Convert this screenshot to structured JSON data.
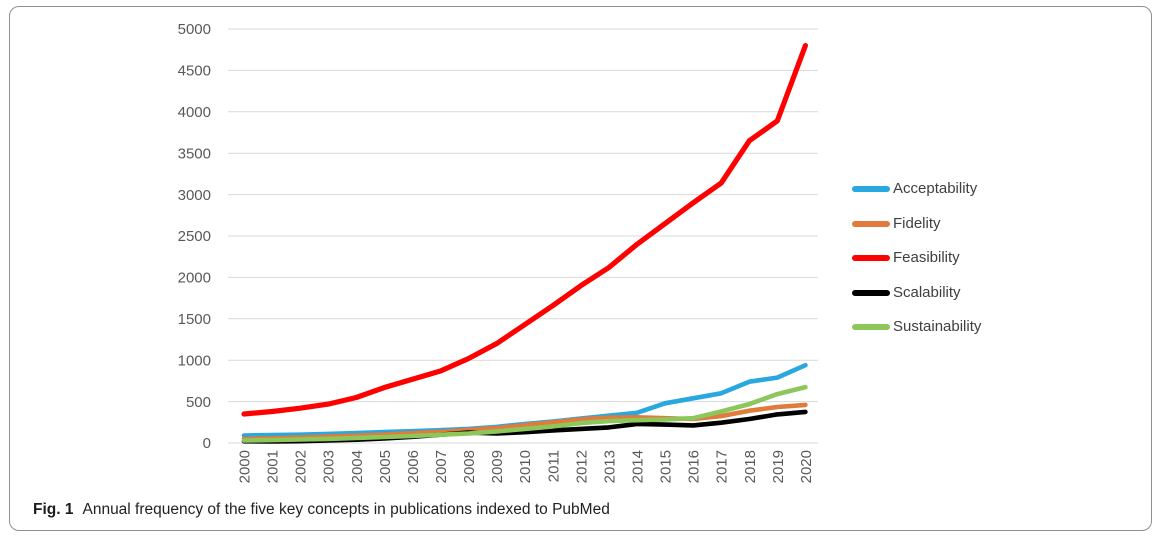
{
  "figure": {
    "caption_label": "Fig. 1",
    "caption_text": "Annual frequency of the five key concepts in publications indexed to PubMed"
  },
  "colors": {
    "gridline": "#d9d9d9",
    "axis_text": "#595959",
    "legend_text": "#3f3f3f",
    "border": "#8f8f8f"
  },
  "chart_data": {
    "type": "line",
    "title": "",
    "xlabel": "",
    "ylabel": "",
    "x": [
      "2000",
      "2001",
      "2002",
      "2003",
      "2004",
      "2005",
      "2006",
      "2007",
      "2008",
      "2009",
      "2010",
      "2011",
      "2012",
      "2013",
      "2014",
      "2015",
      "2016",
      "2017",
      "2018",
      "2019",
      "2020"
    ],
    "ylim": [
      0,
      5000
    ],
    "ytick_step": 500,
    "grid": true,
    "legend_position": "right",
    "series": [
      {
        "name": "Acceptability",
        "color": "#29a8df",
        "values": [
          90,
          95,
          100,
          110,
          120,
          132,
          142,
          155,
          170,
          195,
          230,
          260,
          295,
          330,
          365,
          480,
          540,
          600,
          740,
          790,
          940
        ]
      },
      {
        "name": "Fidelity",
        "color": "#e07b3c",
        "values": [
          50,
          57,
          65,
          77,
          88,
          102,
          118,
          135,
          158,
          180,
          215,
          250,
          285,
          305,
          310,
          300,
          290,
          325,
          390,
          435,
          460
        ]
      },
      {
        "name": "Feasibility",
        "color": "#ff0000",
        "values": [
          350,
          380,
          420,
          470,
          550,
          670,
          770,
          870,
          1020,
          1200,
          1430,
          1660,
          1900,
          2120,
          2400,
          2650,
          2900,
          3140,
          3650,
          3890,
          4800
        ]
      },
      {
        "name": "Scalability",
        "color": "#000000",
        "values": [
          20,
          18,
          22,
          30,
          40,
          55,
          75,
          100,
          125,
          115,
          130,
          152,
          170,
          188,
          230,
          222,
          212,
          245,
          290,
          345,
          375
        ]
      },
      {
        "name": "Sustainability",
        "color": "#8dc75b",
        "values": [
          30,
          35,
          42,
          50,
          60,
          72,
          85,
          100,
          115,
          140,
          170,
          200,
          240,
          265,
          275,
          285,
          300,
          380,
          470,
          590,
          675
        ]
      }
    ]
  }
}
